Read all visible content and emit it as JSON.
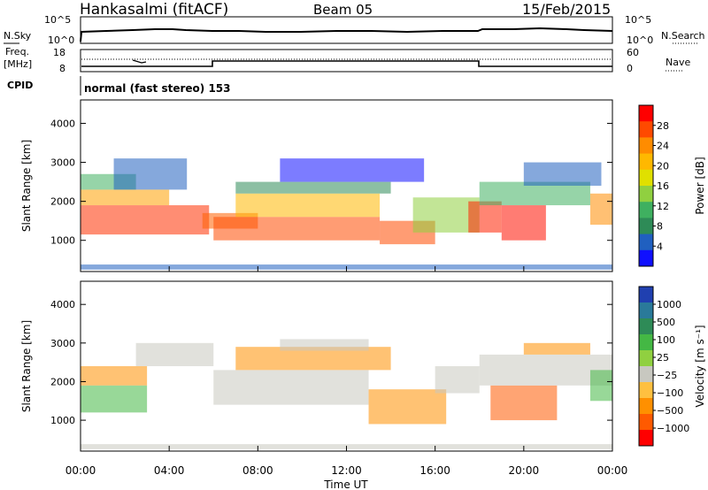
{
  "header": {
    "station": "Hankasalmi (fitACF)",
    "beam": "Beam 05",
    "date": "15/Feb/2015"
  },
  "noise_panel": {
    "left_label": "N.Sky",
    "right_label": "N.Search",
    "left_ticks": [
      "10^5",
      "10^0"
    ],
    "right_ticks": [
      "10^5",
      "10^0"
    ]
  },
  "freq_panel": {
    "left_label_line1": "Freq.",
    "left_label_line2": "[MHz]",
    "left_ticks": [
      "18",
      "8"
    ],
    "right_label": "Nave",
    "right_ticks": [
      "60",
      "0"
    ],
    "cpid_label": "CPID",
    "program_text": "normal (fast stereo) 153"
  },
  "time_axis": {
    "label": "Time UT",
    "ticks": [
      "00:00",
      "04:00",
      "08:00",
      "12:00",
      "16:00",
      "20:00",
      "00:00"
    ]
  },
  "chart_data": [
    {
      "type": "heatmap",
      "name": "power",
      "ylabel": "Slant Range [km]",
      "yticks": [
        1000,
        2000,
        3000,
        4000
      ],
      "ylim": [
        200,
        4600
      ],
      "x_hours": [
        0,
        24
      ],
      "colorbar": {
        "label": "Power [dB]",
        "ticks": [
          "28",
          "24",
          "20",
          "16",
          "12",
          "8",
          "4"
        ],
        "colors": [
          "#ff0000",
          "#ff4a00",
          "#ff8c00",
          "#ffb800",
          "#e0e000",
          "#90d040",
          "#3fb060",
          "#2e8b57",
          "#2060c0",
          "#1010ff"
        ]
      }
    },
    {
      "type": "heatmap",
      "name": "velocity",
      "ylabel": "Slant Range [km]",
      "yticks": [
        1000,
        2000,
        3000,
        4000
      ],
      "ylim": [
        200,
        4600
      ],
      "x_hours": [
        0,
        24
      ],
      "colorbar": {
        "label": "Velocity [m s⁻¹]",
        "ticks": [
          "1000",
          "500",
          "100",
          "25",
          "−25",
          "−100",
          "−500",
          "−1000"
        ],
        "colors": [
          "#2040b0",
          "#2a7a9a",
          "#2e8b57",
          "#44b844",
          "#90d040",
          "#c8c8c0",
          "#ffc040",
          "#ff9000",
          "#ff5a00",
          "#ff0000"
        ]
      }
    }
  ]
}
